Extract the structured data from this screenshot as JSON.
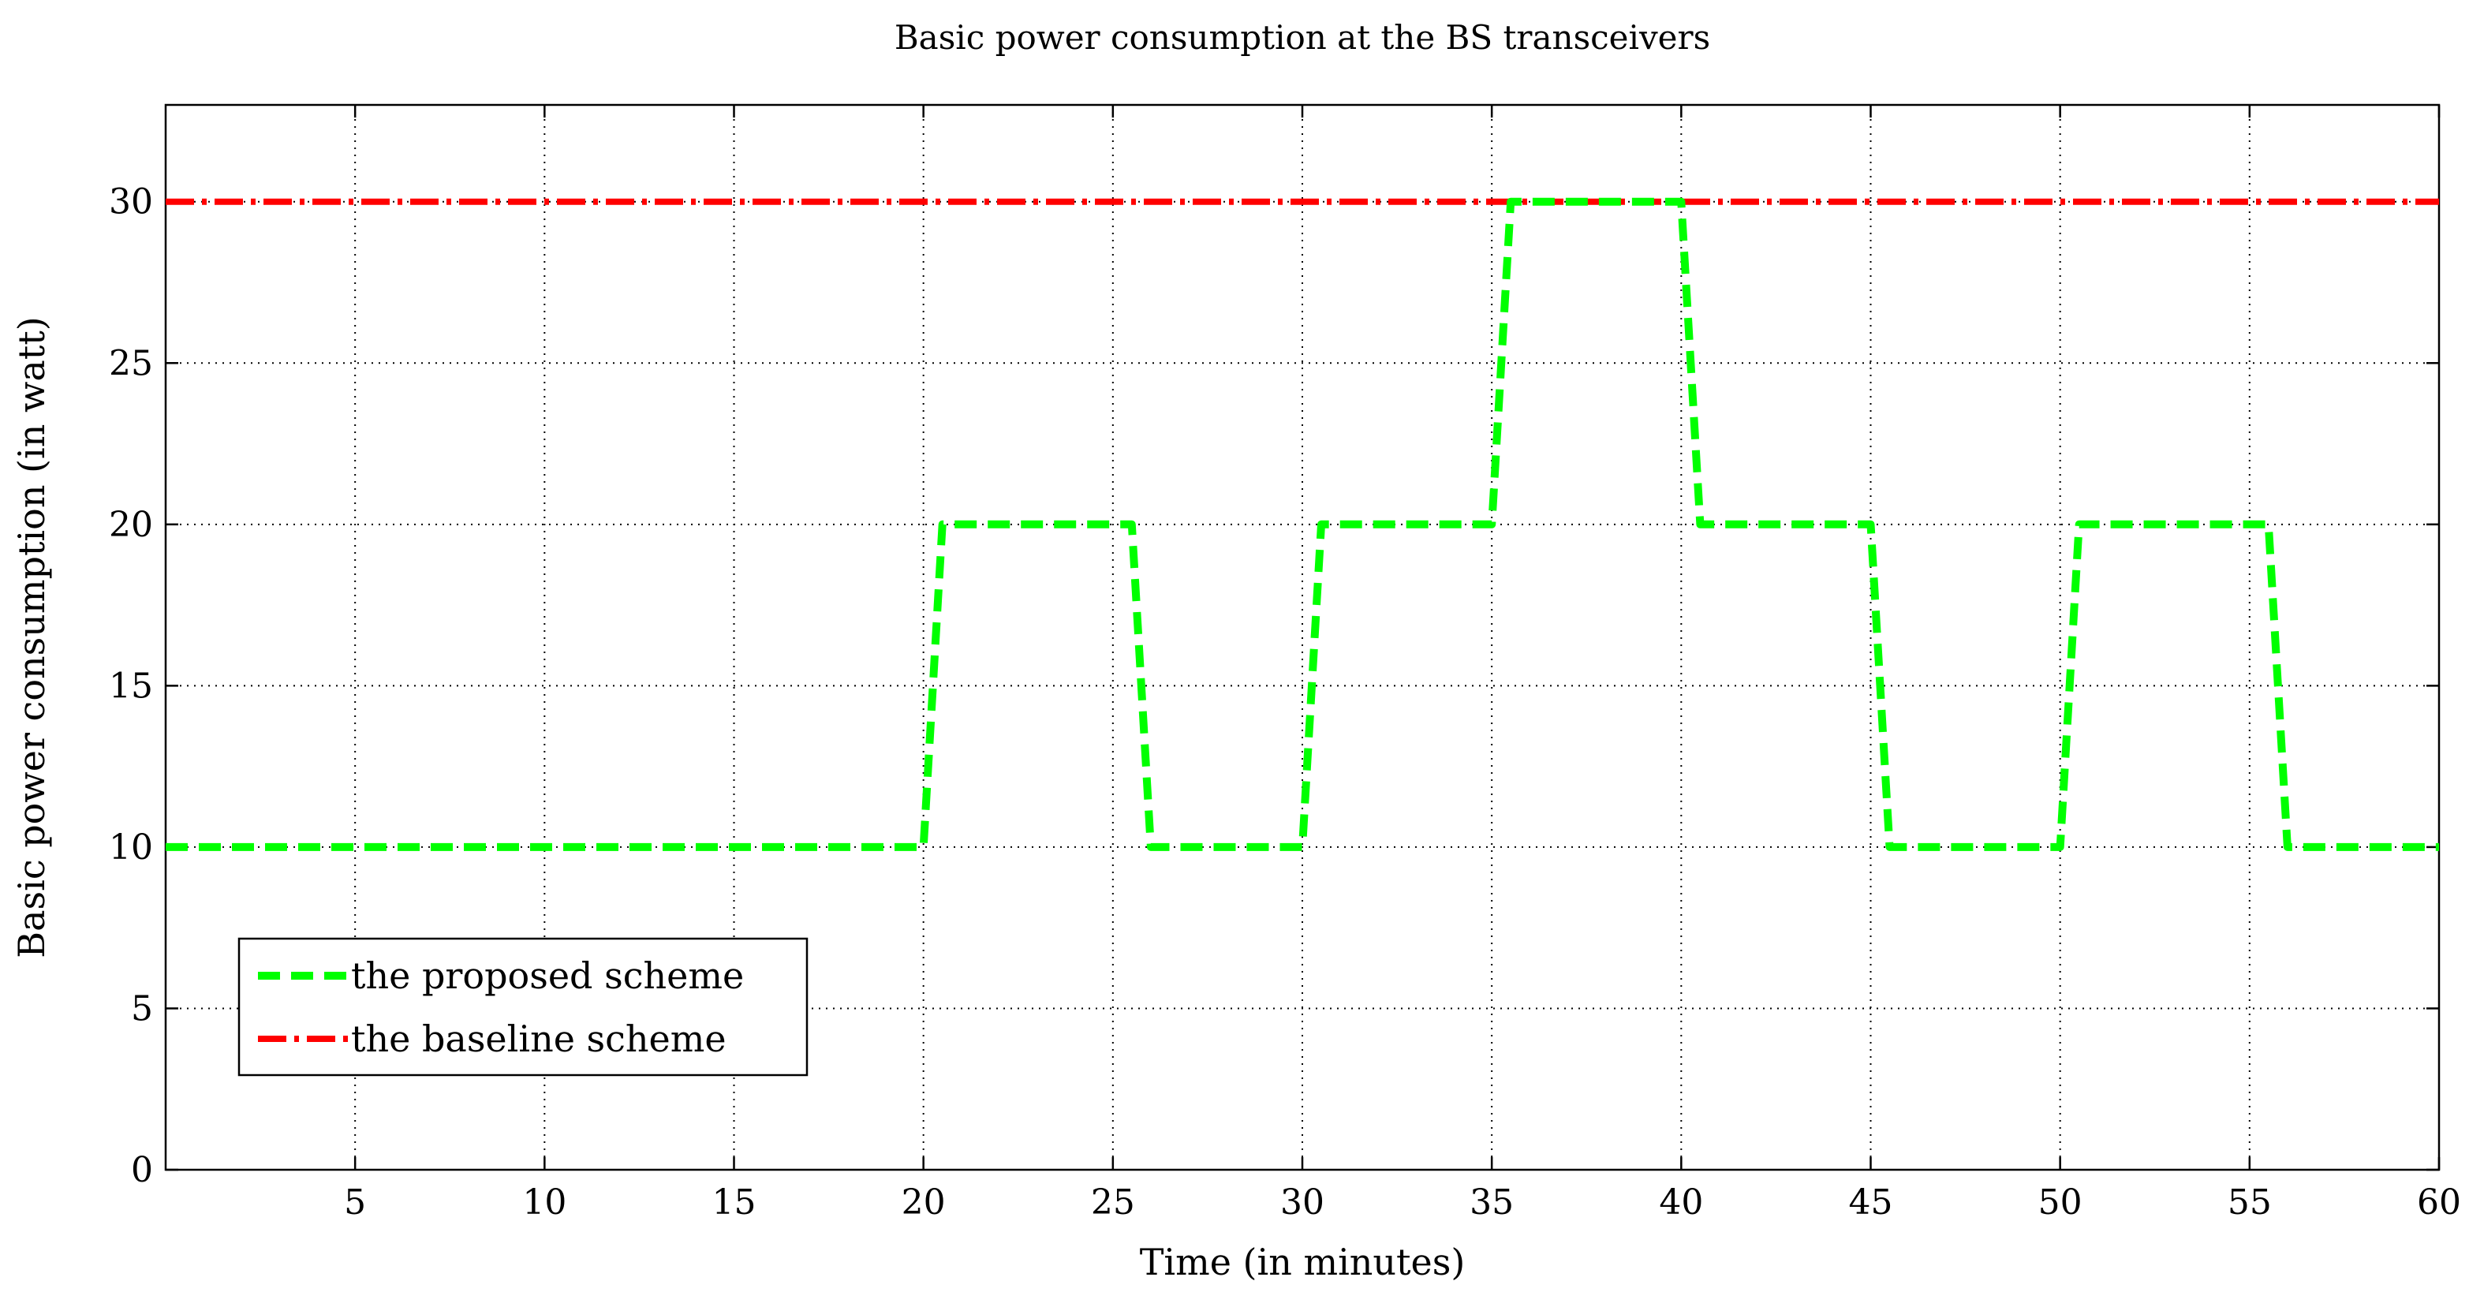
{
  "chart_data": {
    "type": "line",
    "title": "Basic power consumption at the BS transceivers",
    "xlabel": "Time (in minutes)",
    "ylabel": "Basic power consumption (in watt)",
    "xlim": [
      0,
      60
    ],
    "ylim": [
      0,
      33
    ],
    "xticks": [
      5,
      10,
      15,
      20,
      25,
      30,
      35,
      40,
      45,
      50,
      55,
      60
    ],
    "yticks": [
      0,
      5,
      10,
      15,
      20,
      25,
      30
    ],
    "grid": true,
    "legend_position": "bottom-left",
    "series": [
      {
        "name": "the proposed scheme",
        "color": "#00ff00",
        "line_style": "dashed",
        "x": [
          0,
          20,
          20.5,
          25.5,
          26,
          30,
          30.5,
          35,
          35.5,
          40,
          40.5,
          45,
          45.5,
          50,
          50.5,
          55.5,
          56,
          60
        ],
        "y": [
          10,
          10,
          20,
          20,
          10,
          10,
          20,
          20,
          30,
          30,
          20,
          20,
          10,
          10,
          20,
          20,
          10,
          10
        ]
      },
      {
        "name": "the baseline scheme",
        "color": "#ff0000",
        "line_style": "dash-dot",
        "x": [
          0,
          60
        ],
        "y": [
          30,
          30
        ]
      }
    ]
  }
}
